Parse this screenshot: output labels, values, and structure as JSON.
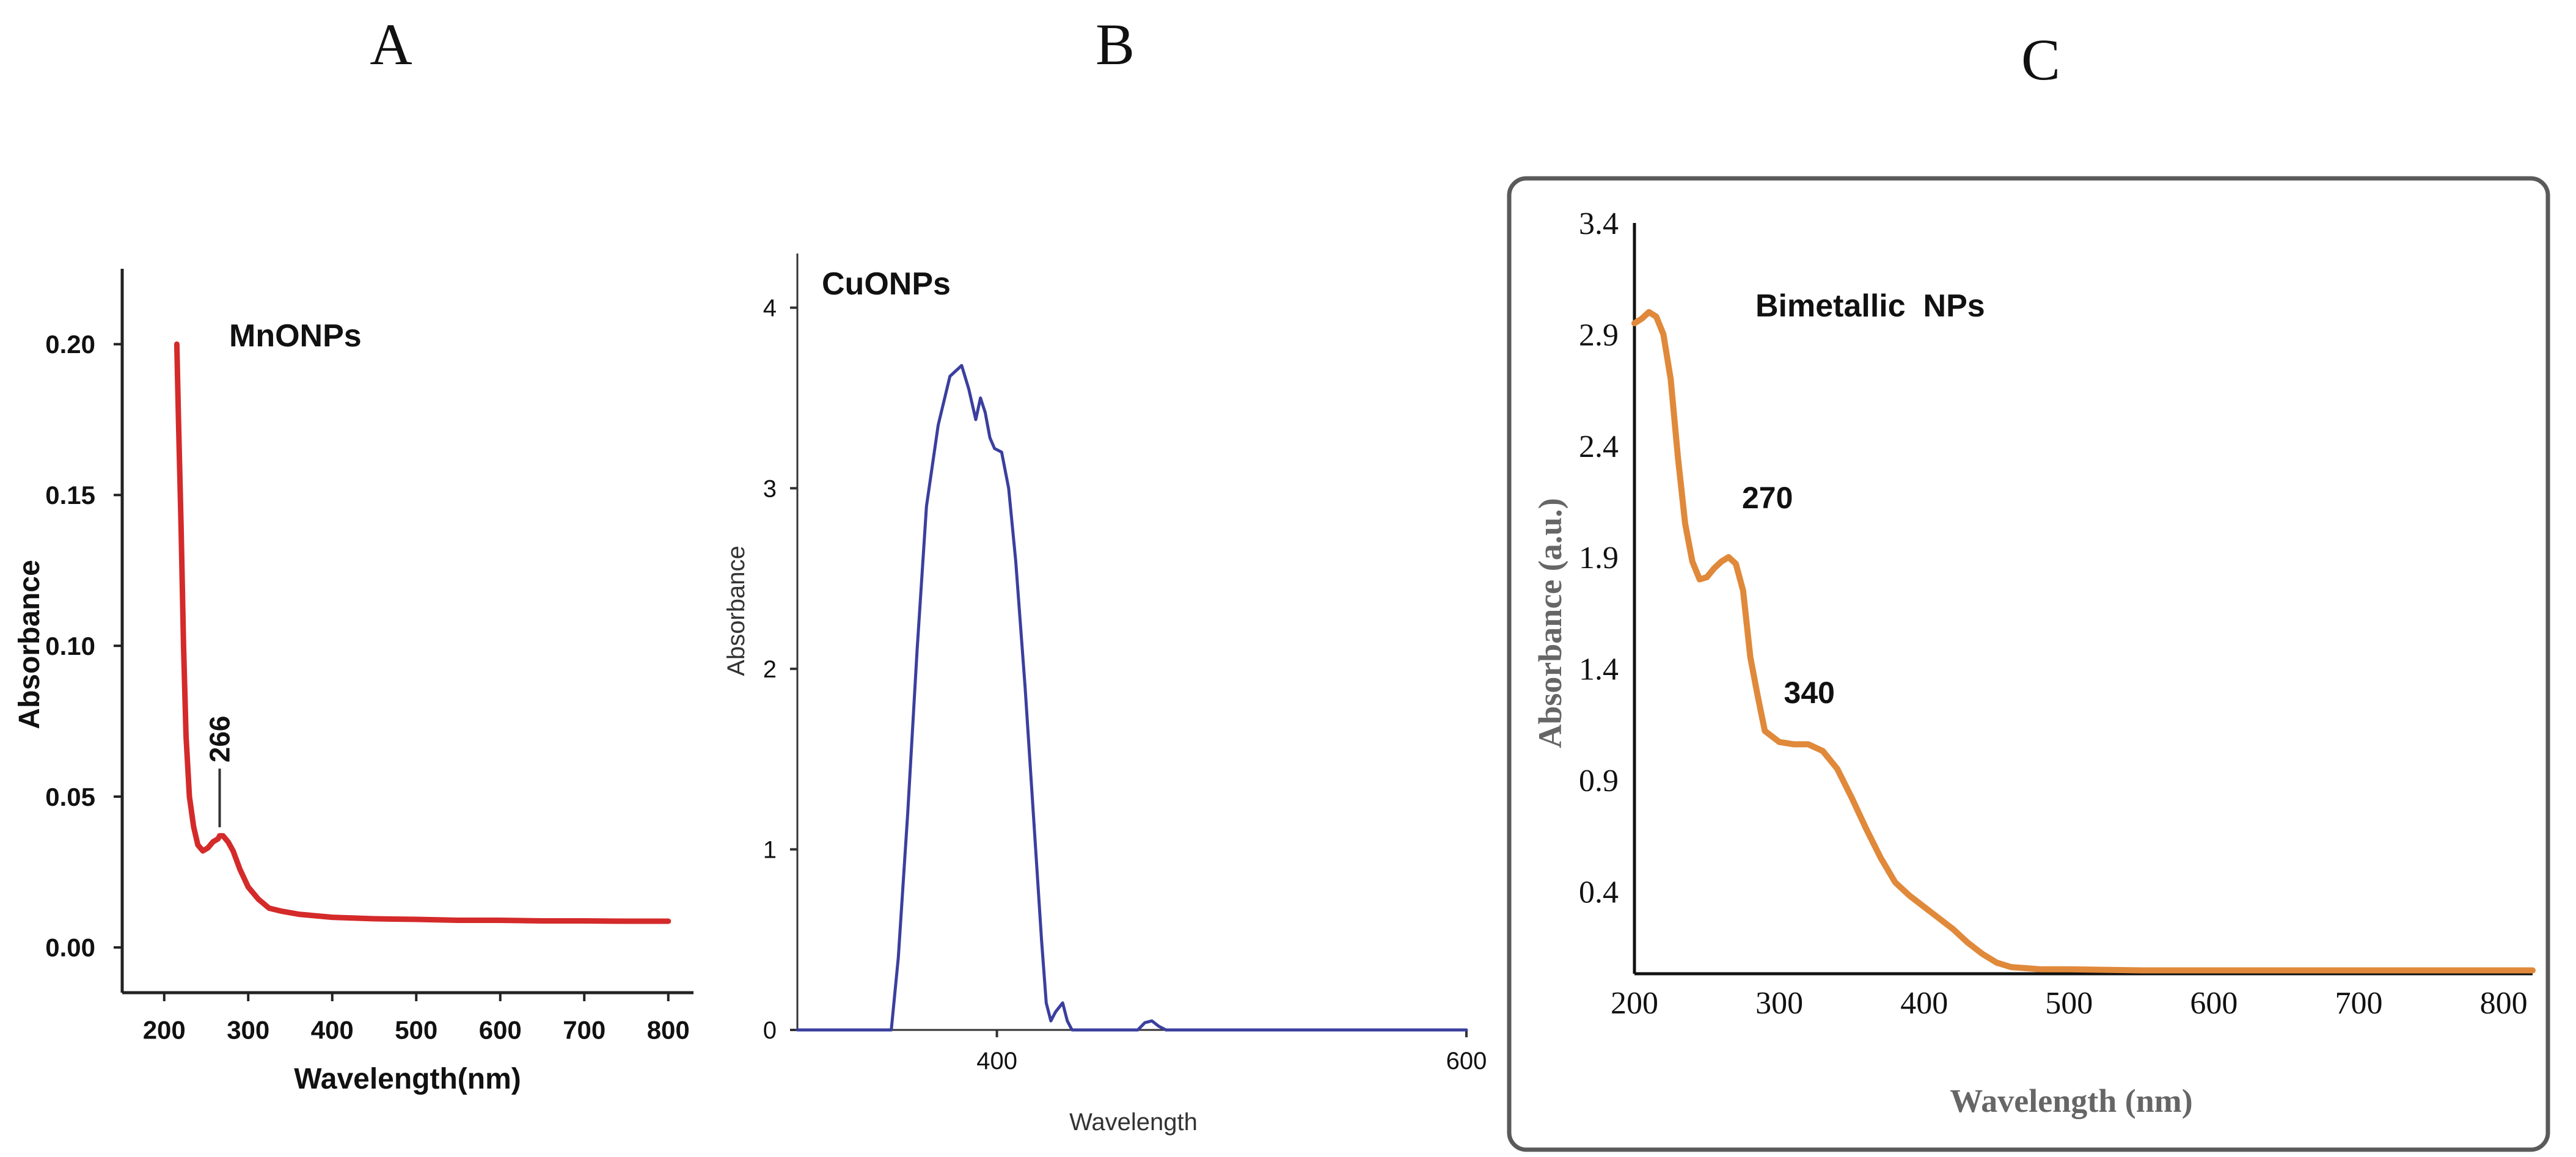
{
  "figure": {
    "panel_letters": [
      "A",
      "B",
      "C"
    ],
    "colors": {
      "panel_a_line": "#d42a2a",
      "panel_b_line": "#3b3f9e",
      "panel_c_line": "#e0893a",
      "axis": "#222222",
      "frame": "#555555"
    }
  },
  "chart_data": [
    {
      "panel": "A",
      "type": "line",
      "title": "MnONPs",
      "xlabel": "Wavelength(nm)",
      "ylabel": "Absorbance",
      "xlim": [
        150,
        830
      ],
      "ylim": [
        -0.015,
        0.225
      ],
      "xticks": [
        "200",
        "300",
        "400",
        "500",
        "600",
        "700",
        "800"
      ],
      "yticks": [
        "0.00",
        "0.05",
        "0.10",
        "0.15",
        "0.20"
      ],
      "annotations": [
        {
          "text": "266",
          "x": 266,
          "y": 0.037
        }
      ],
      "series": [
        {
          "name": "MnONPs",
          "x": [
            215,
            217,
            220,
            223,
            226,
            230,
            235,
            240,
            246,
            252,
            258,
            264,
            266,
            270,
            276,
            282,
            290,
            300,
            312,
            325,
            340,
            360,
            400,
            450,
            500,
            550,
            600,
            650,
            700,
            750,
            800
          ],
          "y": [
            0.2,
            0.175,
            0.14,
            0.1,
            0.07,
            0.05,
            0.04,
            0.034,
            0.032,
            0.033,
            0.035,
            0.036,
            0.037,
            0.037,
            0.035,
            0.032,
            0.026,
            0.02,
            0.016,
            0.013,
            0.012,
            0.011,
            0.01,
            0.0095,
            0.0093,
            0.009,
            0.009,
            0.0088,
            0.0088,
            0.0087,
            0.0087
          ]
        }
      ]
    },
    {
      "panel": "B",
      "type": "line",
      "title": "CuONPs",
      "xlabel": "Wavelength",
      "ylabel": "Absorbance",
      "xlim": [
        315,
        600
      ],
      "ylim": [
        0,
        4.3
      ],
      "xticks": [
        "400",
        "600"
      ],
      "yticks": [
        "0",
        "1",
        "2",
        "3",
        "4"
      ],
      "series": [
        {
          "name": "CuONPs",
          "x": [
            315,
            355,
            358,
            362,
            366,
            370,
            375,
            380,
            385,
            388,
            391,
            393,
            395,
            397,
            399,
            402,
            405,
            408,
            412,
            416,
            419,
            421,
            423,
            425,
            428,
            430,
            432,
            450,
            460,
            463,
            466,
            469,
            472,
            600
          ],
          "y": [
            0,
            0,
            0.4,
            1.2,
            2.1,
            2.9,
            3.35,
            3.62,
            3.68,
            3.55,
            3.38,
            3.5,
            3.42,
            3.28,
            3.22,
            3.2,
            3.0,
            2.6,
            1.9,
            1.1,
            0.5,
            0.15,
            0.05,
            0.1,
            0.15,
            0.05,
            0,
            0,
            0,
            0.04,
            0.05,
            0.02,
            0,
            0
          ]
        }
      ]
    },
    {
      "panel": "C",
      "type": "line",
      "title": "Bimetallic  NPs",
      "xlabel": "Wavelength (nm)",
      "ylabel": "Absorbance (a.u.)",
      "xlim": [
        200,
        820
      ],
      "ylim": [
        0.03,
        3.4
      ],
      "xticks": [
        "200",
        "300",
        "400",
        "500",
        "600",
        "700",
        "800"
      ],
      "yticks": [
        "0.4",
        "0.9",
        "1.4",
        "1.9",
        "2.4",
        "2.9",
        "3.4"
      ],
      "annotations": [
        {
          "text": "270",
          "x": 270,
          "y": 1.9
        },
        {
          "text": "340",
          "x": 320,
          "y": 1.08
        }
      ],
      "series": [
        {
          "name": "Bimetallic NPs",
          "x": [
            200,
            205,
            210,
            215,
            220,
            225,
            230,
            235,
            240,
            245,
            250,
            255,
            260,
            265,
            270,
            275,
            280,
            285,
            290,
            300,
            310,
            320,
            330,
            340,
            350,
            360,
            370,
            380,
            390,
            400,
            410,
            420,
            430,
            440,
            450,
            460,
            470,
            480,
            500,
            550,
            600,
            650,
            700,
            750,
            800,
            820
          ],
          "y": [
            2.95,
            2.97,
            3.0,
            2.98,
            2.9,
            2.7,
            2.35,
            2.05,
            1.88,
            1.8,
            1.81,
            1.85,
            1.88,
            1.9,
            1.87,
            1.75,
            1.45,
            1.28,
            1.12,
            1.07,
            1.06,
            1.06,
            1.03,
            0.95,
            0.82,
            0.68,
            0.55,
            0.44,
            0.38,
            0.33,
            0.28,
            0.23,
            0.17,
            0.12,
            0.08,
            0.06,
            0.055,
            0.05,
            0.05,
            0.045,
            0.045,
            0.045,
            0.045,
            0.045,
            0.045,
            0.045
          ]
        }
      ]
    }
  ]
}
